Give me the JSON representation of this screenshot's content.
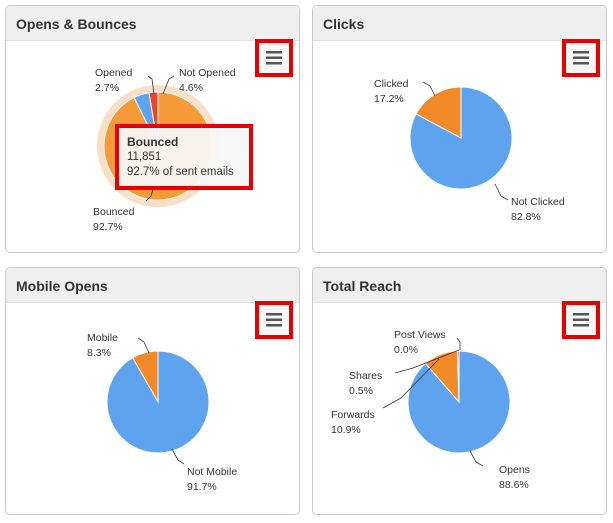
{
  "panels": [
    {
      "title": "Opens & Bounces",
      "menu_icon": "hamburger-icon",
      "chart_data": {
        "type": "pie",
        "slices": [
          {
            "label": "Opened",
            "percent": "2.7%",
            "value": 2.7,
            "color": "#e8452c"
          },
          {
            "label": "Not Opened",
            "percent": "4.6%",
            "value": 4.6,
            "color": "#5ea3ee"
          },
          {
            "label": "Bounced",
            "percent": "92.7%",
            "value": 92.7,
            "color": "#f59a36"
          }
        ],
        "tooltip": {
          "title": "Bounced",
          "value": "11,851",
          "detail": "92.7% of sent emails"
        }
      }
    },
    {
      "title": "Clicks",
      "menu_icon": "hamburger-icon",
      "chart_data": {
        "type": "pie",
        "slices": [
          {
            "label": "Clicked",
            "percent": "17.2%",
            "value": 17.2,
            "color": "#f28a28"
          },
          {
            "label": "Not Clicked",
            "percent": "82.8%",
            "value": 82.8,
            "color": "#5ea3ee"
          }
        ]
      }
    },
    {
      "title": "Mobile Opens",
      "menu_icon": "hamburger-icon",
      "chart_data": {
        "type": "pie",
        "slices": [
          {
            "label": "Mobile",
            "percent": "8.3%",
            "value": 8.3,
            "color": "#f28a28"
          },
          {
            "label": "Not Mobile",
            "percent": "91.7%",
            "value": 91.7,
            "color": "#5ea3ee"
          }
        ]
      }
    },
    {
      "title": "Total Reach",
      "menu_icon": "hamburger-icon",
      "chart_data": {
        "type": "pie",
        "slices": [
          {
            "label": "Post Views",
            "percent": "0.0%",
            "value": 0.0,
            "color": "#5ea3ee"
          },
          {
            "label": "Shares",
            "percent": "0.5%",
            "value": 0.5,
            "color": "#e8452c"
          },
          {
            "label": "Forwards",
            "percent": "10.9%",
            "value": 10.9,
            "color": "#f28a28"
          },
          {
            "label": "Opens",
            "percent": "88.6%",
            "value": 88.6,
            "color": "#5ea3ee"
          }
        ]
      }
    }
  ]
}
